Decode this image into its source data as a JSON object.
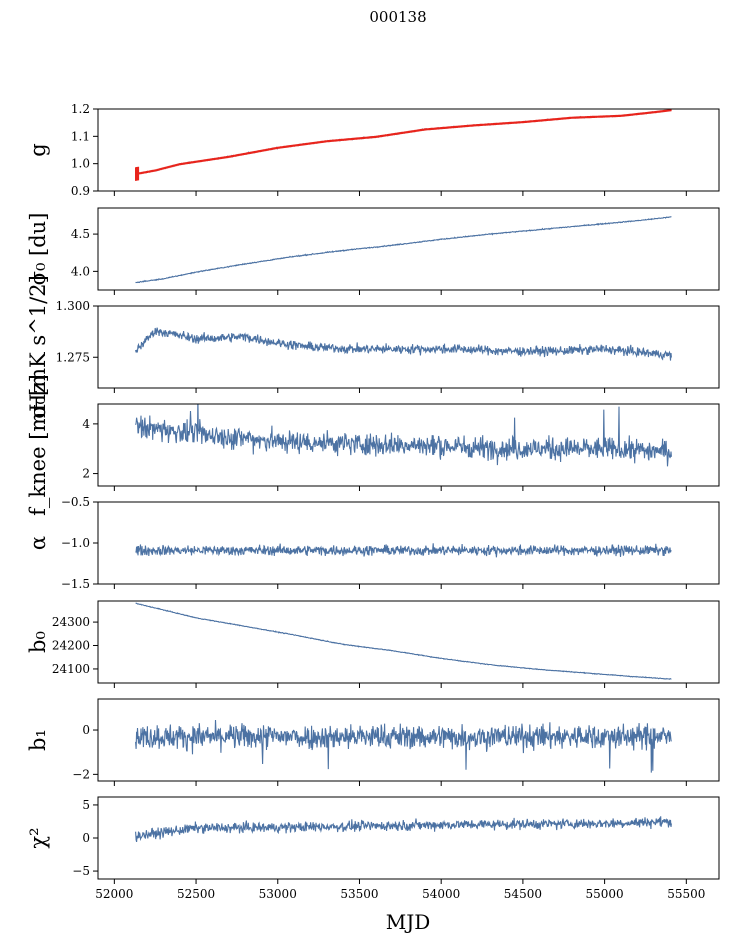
{
  "figure_title": "000138",
  "colors": {
    "series": "#4c72a3",
    "gain_error": "#e8241c",
    "frame": "#000000"
  },
  "chart_data": {
    "type": "line",
    "title": "000138",
    "xlabel": "MJD",
    "xlim": [
      51900,
      55700
    ],
    "x_ticks": [
      52000,
      52500,
      53000,
      53500,
      54000,
      54500,
      55000,
      55500
    ],
    "x_tick_labels": [
      "52000",
      "52500",
      "53000",
      "53500",
      "54000",
      "54500",
      "55000",
      "55500"
    ],
    "x_range_of_data": [
      52130,
      55410
    ],
    "panels": [
      {
        "id": "gain",
        "ylabel": "g",
        "ylim": [
          0.9,
          1.2
        ],
        "y_ticks": [
          0.9,
          1.0,
          1.1,
          1.2
        ],
        "y_tick_labels": [
          "0.9",
          "1.0",
          "1.1",
          "1.2"
        ],
        "series": [
          {
            "name": "g",
            "points": [
              [
                52130,
                0.962
              ],
              [
                52250,
                0.975
              ],
              [
                52400,
                0.998
              ],
              [
                52700,
                1.025
              ],
              [
                53000,
                1.058
              ],
              [
                53300,
                1.082
              ],
              [
                53600,
                1.098
              ],
              [
                53900,
                1.125
              ],
              [
                54200,
                1.14
              ],
              [
                54500,
                1.152
              ],
              [
                54800,
                1.168
              ],
              [
                55100,
                1.175
              ],
              [
                55300,
                1.188
              ],
              [
                55410,
                1.196
              ]
            ]
          },
          {
            "name": "g_error_band",
            "points": [
              [
                52130,
                0.96
              ],
              [
                55410,
                1.196
              ]
            ]
          }
        ]
      },
      {
        "id": "sigma0_du",
        "ylabel": "σ₀ [du]",
        "ylim": [
          3.75,
          4.85
        ],
        "y_ticks": [
          4.0,
          4.5
        ],
        "y_tick_labels": [
          "4.0",
          "4.5"
        ],
        "series": [
          {
            "name": "sigma0 [du]",
            "points": [
              [
                52130,
                3.85
              ],
              [
                52300,
                3.9
              ],
              [
                52500,
                3.99
              ],
              [
                52800,
                4.1
              ],
              [
                53100,
                4.2
              ],
              [
                53400,
                4.28
              ],
              [
                53700,
                4.35
              ],
              [
                54000,
                4.43
              ],
              [
                54300,
                4.5
              ],
              [
                54600,
                4.56
              ],
              [
                54900,
                4.62
              ],
              [
                55200,
                4.68
              ],
              [
                55410,
                4.73
              ]
            ]
          }
        ]
      },
      {
        "id": "sigma0_mk",
        "ylabel": "σ₀[mK s^1/2]",
        "ylim": [
          1.26,
          1.3
        ],
        "y_ticks": [
          1.275,
          1.3
        ],
        "y_tick_labels": [
          "1.275",
          "1.300"
        ],
        "series": [
          {
            "name": "sigma0 [mK s^1/2]",
            "points": [
              [
                52130,
                1.278
              ],
              [
                52250,
                1.288
              ],
              [
                52500,
                1.284
              ],
              [
                52800,
                1.285
              ],
              [
                53000,
                1.282
              ],
              [
                53200,
                1.28
              ],
              [
                53500,
                1.279
              ],
              [
                53800,
                1.279
              ],
              [
                54100,
                1.279
              ],
              [
                54400,
                1.278
              ],
              [
                54700,
                1.278
              ],
              [
                55000,
                1.279
              ],
              [
                55410,
                1.276
              ]
            ]
          }
        ]
      },
      {
        "id": "fknee",
        "ylabel": "f_knee [mHz]",
        "ylim": [
          1.5,
          4.8
        ],
        "y_ticks": [
          2,
          4
        ],
        "y_tick_labels": [
          "2",
          "4"
        ],
        "series": [
          {
            "name": "fknee [mHz]",
            "points": [
              [
                52130,
                3.9
              ],
              [
                52500,
                3.6
              ],
              [
                53000,
                3.3
              ],
              [
                53500,
                3.2
              ],
              [
                54000,
                3.1
              ],
              [
                54500,
                3.0
              ],
              [
                55000,
                3.0
              ],
              [
                55410,
                2.9
              ]
            ]
          }
        ]
      },
      {
        "id": "alpha",
        "ylabel": "α",
        "ylim": [
          -1.5,
          -0.5
        ],
        "y_ticks": [
          -1.5,
          -1.0,
          -0.5
        ],
        "y_tick_labels": [
          "−1.5",
          "−1.0",
          "−0.5"
        ],
        "series": [
          {
            "name": "alpha",
            "points": [
              [
                52130,
                -1.09
              ],
              [
                55410,
                -1.09
              ]
            ]
          }
        ]
      },
      {
        "id": "b0",
        "ylabel": "b₀",
        "ylim": [
          24040,
          24390
        ],
        "y_ticks": [
          24100,
          24200,
          24300
        ],
        "y_tick_labels": [
          "24100",
          "24200",
          "24300"
        ],
        "series": [
          {
            "name": "b0",
            "points": [
              [
                52130,
                24380
              ],
              [
                52300,
                24352
              ],
              [
                52500,
                24318
              ],
              [
                52800,
                24282
              ],
              [
                53100,
                24245
              ],
              [
                53400,
                24205
              ],
              [
                53700,
                24178
              ],
              [
                54000,
                24145
              ],
              [
                54300,
                24118
              ],
              [
                54600,
                24098
              ],
              [
                54900,
                24082
              ],
              [
                55200,
                24066
              ],
              [
                55410,
                24057
              ]
            ]
          }
        ]
      },
      {
        "id": "b1",
        "ylabel": "b₁",
        "ylim": [
          -2.3,
          1.4
        ],
        "y_ticks": [
          -2,
          0
        ],
        "y_tick_labels": [
          "−2",
          "0"
        ],
        "series": [
          {
            "name": "b1",
            "points": [
              [
                52130,
                -0.3
              ],
              [
                55410,
                -0.3
              ]
            ]
          }
        ]
      },
      {
        "id": "chi2",
        "ylabel": "χ²",
        "ylim": [
          -6.2,
          6.2
        ],
        "y_ticks": [
          -5,
          0,
          5
        ],
        "y_tick_labels": [
          "−5",
          "0",
          "5"
        ],
        "series": [
          {
            "name": "chi2",
            "points": [
              [
                52130,
                0.3
              ],
              [
                52500,
                1.5
              ],
              [
                53000,
                1.6
              ],
              [
                53500,
                1.8
              ],
              [
                54000,
                2.0
              ],
              [
                54500,
                2.1
              ],
              [
                55000,
                2.2
              ],
              [
                55410,
                2.5
              ]
            ]
          }
        ]
      }
    ]
  }
}
